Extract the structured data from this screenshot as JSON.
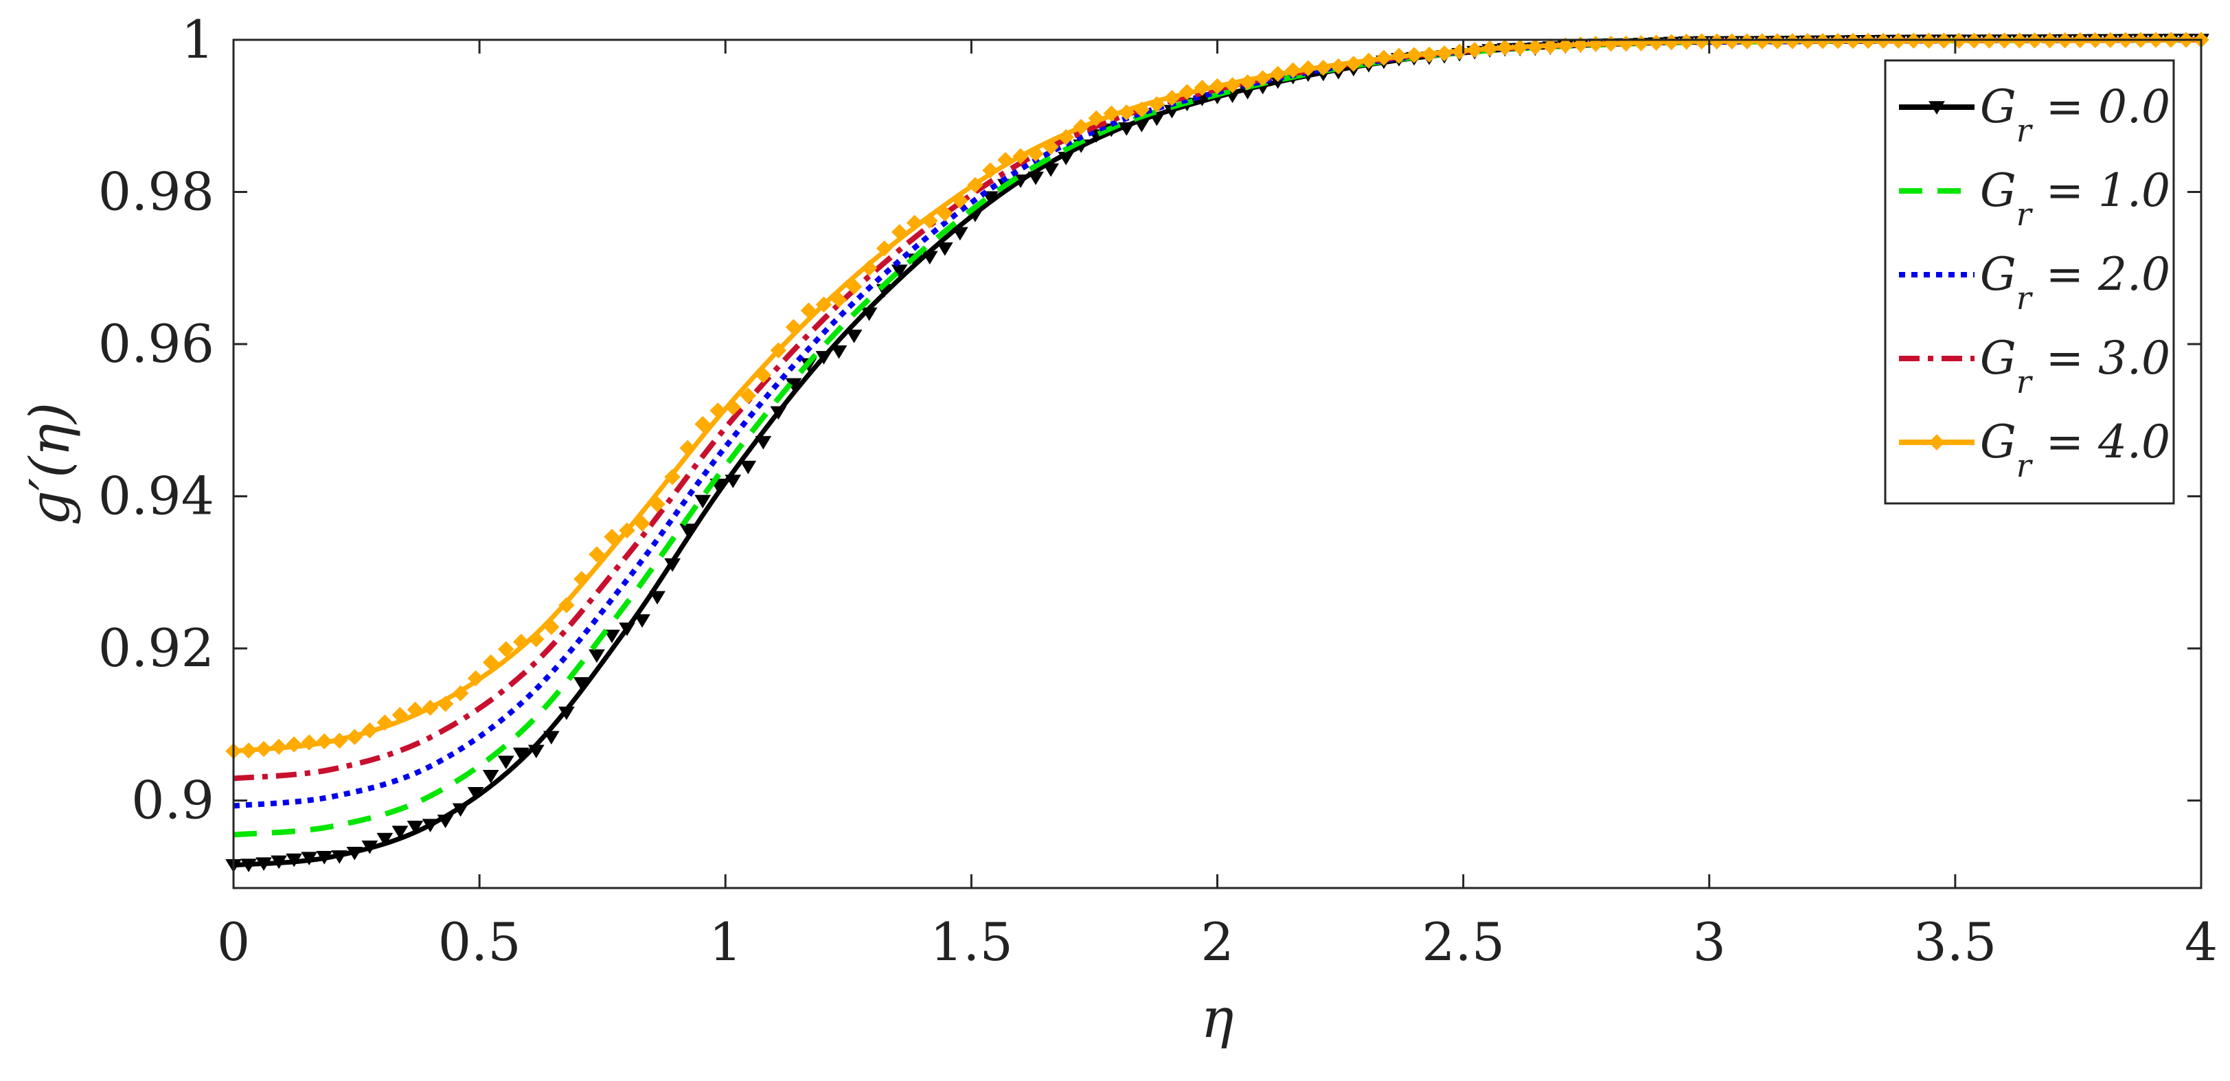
{
  "chart_data": {
    "type": "line",
    "xlabel": "η",
    "ylabel": "g′(η)",
    "xlim": [
      0,
      4
    ],
    "ylim": [
      0.8885,
      1.0
    ],
    "x_ticks": [
      0,
      0.5,
      1,
      1.5,
      2,
      2.5,
      3,
      3.5,
      4
    ],
    "x_tick_labels": [
      "0",
      "0.5",
      "1",
      "1.5",
      "2",
      "2.5",
      "3",
      "3.5",
      "4"
    ],
    "y_ticks": [
      0.9,
      0.92,
      0.94,
      0.96,
      0.98,
      1
    ],
    "y_tick_labels": [
      "0.9",
      "0.92",
      "0.94",
      "0.96",
      "0.98",
      "1"
    ],
    "grid": false,
    "legend_position": "top-right",
    "x": [
      0,
      0.2,
      0.4,
      0.6,
      0.8,
      1.0,
      1.2,
      1.4,
      1.6,
      1.8,
      2.0,
      2.2,
      2.4,
      2.6,
      2.8,
      3.0,
      3.5,
      4.0
    ],
    "series": [
      {
        "name": "G_r = 0.0",
        "legend_main": "G",
        "legend_sub": "r",
        "legend_value": " = 0.0",
        "color": "#000000",
        "dash": "",
        "marker": "triangle-down",
        "values": [
          0.8915,
          0.8926,
          0.8968,
          0.9063,
          0.9226,
          0.9418,
          0.9583,
          0.9713,
          0.9815,
          0.9883,
          0.9925,
          0.9955,
          0.9976,
          0.9988,
          0.9994,
          0.9997,
          0.9999,
          1.0
        ]
      },
      {
        "name": "G_r = 1.0",
        "legend_main": "G",
        "legend_sub": "r",
        "legend_value": " = 1.0",
        "color": "#00e600",
        "dash": "34,22",
        "marker": "none",
        "values": [
          0.8955,
          0.8966,
          0.9006,
          0.91,
          0.926,
          0.944,
          0.9598,
          0.9723,
          0.9822,
          0.9888,
          0.9928,
          0.9957,
          0.9977,
          0.9988,
          0.9994,
          0.9997,
          0.9999,
          1.0
        ]
      },
      {
        "name": "G_r = 2.0",
        "legend_main": "G",
        "legend_sub": "r",
        "legend_value": " = 2.0",
        "color": "#0000ee",
        "dash": "9,9",
        "marker": "none",
        "values": [
          0.8993,
          0.9005,
          0.9045,
          0.9137,
          0.929,
          0.9465,
          0.9615,
          0.9735,
          0.983,
          0.9893,
          0.9931,
          0.9959,
          0.9978,
          0.9989,
          0.9995,
          0.9997,
          0.9999,
          1.0
        ]
      },
      {
        "name": "G_r = 3.0",
        "legend_main": "G",
        "legend_sub": "r",
        "legend_value": " = 3.0",
        "color": "#c8102e",
        "dash": "30,12,8,12",
        "marker": "none",
        "values": [
          0.9029,
          0.9041,
          0.9083,
          0.9173,
          0.9322,
          0.949,
          0.9633,
          0.9748,
          0.9838,
          0.9898,
          0.9935,
          0.9961,
          0.9979,
          0.9989,
          0.9995,
          0.9998,
          0.9999,
          1.0
        ]
      },
      {
        "name": "G_r = 4.0",
        "legend_main": "G",
        "legend_sub": "r",
        "legend_value": " = 4.0",
        "color": "#ffab00",
        "dash": "",
        "marker": "diamond",
        "values": [
          0.9065,
          0.9078,
          0.9122,
          0.921,
          0.9355,
          0.9515,
          0.9652,
          0.9761,
          0.9847,
          0.9904,
          0.9939,
          0.9963,
          0.998,
          0.999,
          0.9995,
          0.9998,
          0.9999,
          1.0
        ]
      }
    ]
  }
}
